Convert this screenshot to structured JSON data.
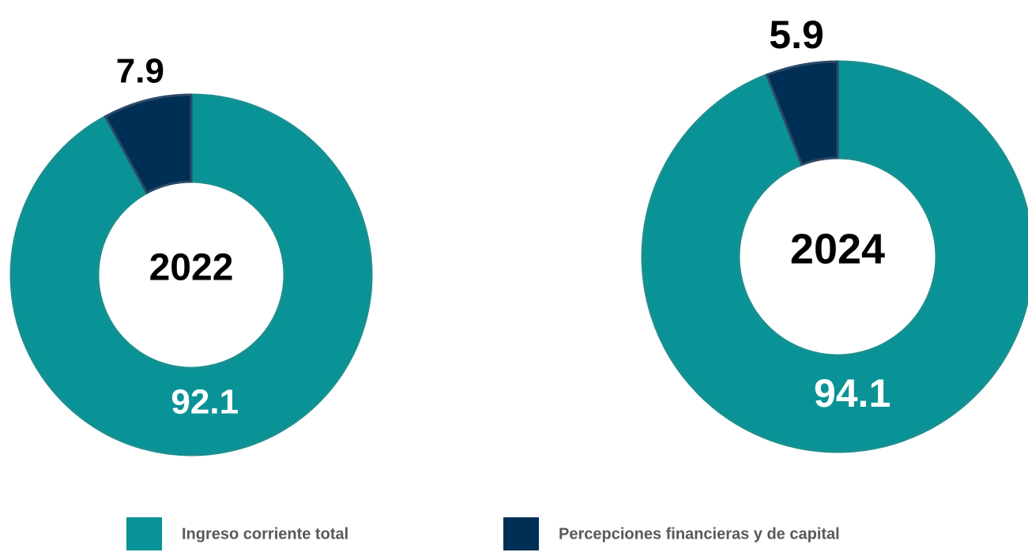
{
  "chart_data": [
    {
      "type": "pie",
      "title": "2022",
      "values": [
        92.1,
        7.9
      ]
    },
    {
      "type": "pie",
      "title": "2024",
      "values": [
        94.1,
        5.9
      ]
    }
  ],
  "legend": {
    "categories": [
      "Ingreso corriente total",
      "Percepciones financieras y de capital"
    ],
    "colors": [
      "#0a9396",
      "#002f56"
    ]
  }
}
